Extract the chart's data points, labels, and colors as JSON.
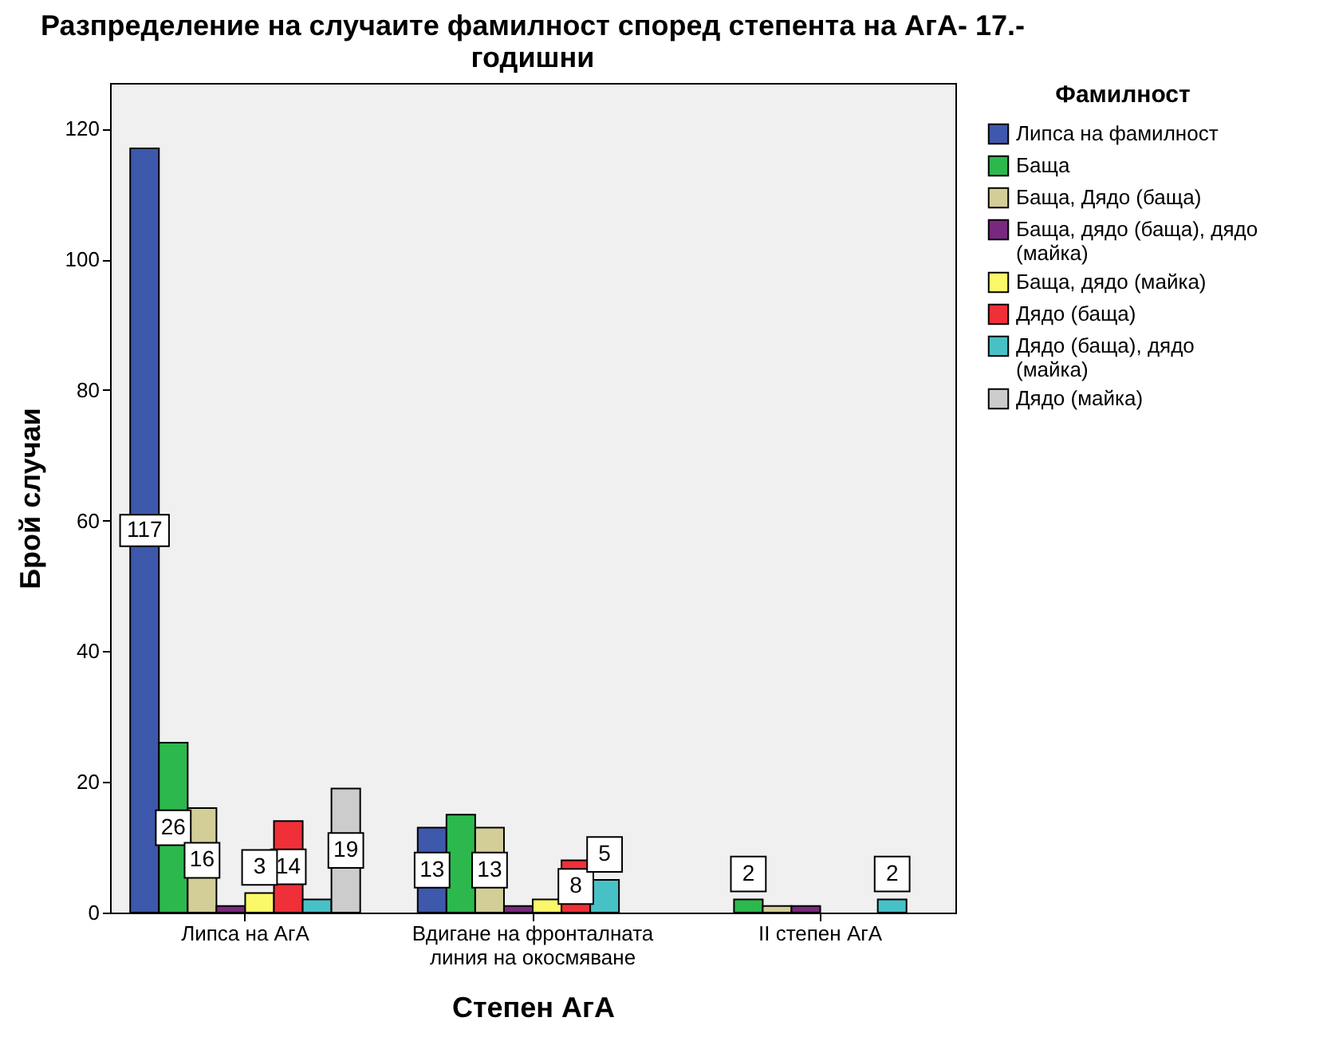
{
  "chart_data": {
    "type": "bar",
    "title": "Разпределение на случаите фамилност според степента на АгА- 17.-годишни",
    "xlabel": "Степен АгА",
    "ylabel": "Брой случаи",
    "legend_title": "Фамилност",
    "legend": "right",
    "grid": false,
    "categories": [
      "Липса на АгА",
      "Вдигане на фронталната линия на окосмяване",
      "II степен АгА"
    ],
    "ylim": [
      0,
      127
    ],
    "yticks": [
      0,
      20,
      40,
      60,
      80,
      100,
      120
    ],
    "series": [
      {
        "name": "Липса на фамилност",
        "color": "#3e58ac",
        "values": [
          117,
          13,
          null
        ],
        "value_labels": [
          "117",
          "13",
          null
        ]
      },
      {
        "name": "Баща",
        "color": "#2db84d",
        "values": [
          26,
          15,
          2
        ],
        "value_labels": [
          "26",
          null,
          "2"
        ]
      },
      {
        "name": "Баща, Дядо (баща)",
        "color": "#d3ce97",
        "values": [
          16,
          13,
          1
        ],
        "value_labels": [
          "16",
          "13",
          null
        ]
      },
      {
        "name": "Баща, дядо (баща), дядо (майка)",
        "color": "#79287f",
        "values": [
          1,
          1,
          1
        ],
        "value_labels": [
          null,
          null,
          null
        ]
      },
      {
        "name": "Баща, дядо (майка)",
        "color": "#fbf869",
        "values": [
          3,
          2,
          null
        ],
        "value_labels": [
          "3",
          null,
          null
        ]
      },
      {
        "name": "Дядо (баща)",
        "color": "#ef3038",
        "values": [
          14,
          8,
          null
        ],
        "value_labels": [
          "14",
          "8",
          null
        ]
      },
      {
        "name": "Дядо (баща), дядо (майка)",
        "color": "#48c1c6",
        "values": [
          2,
          5,
          2
        ],
        "value_labels": [
          null,
          "5",
          "2"
        ]
      },
      {
        "name": "Дядо (майка)",
        "color": "#cccccc",
        "values": [
          19,
          null,
          null
        ],
        "value_labels": [
          "19",
          null,
          null
        ]
      }
    ]
  }
}
